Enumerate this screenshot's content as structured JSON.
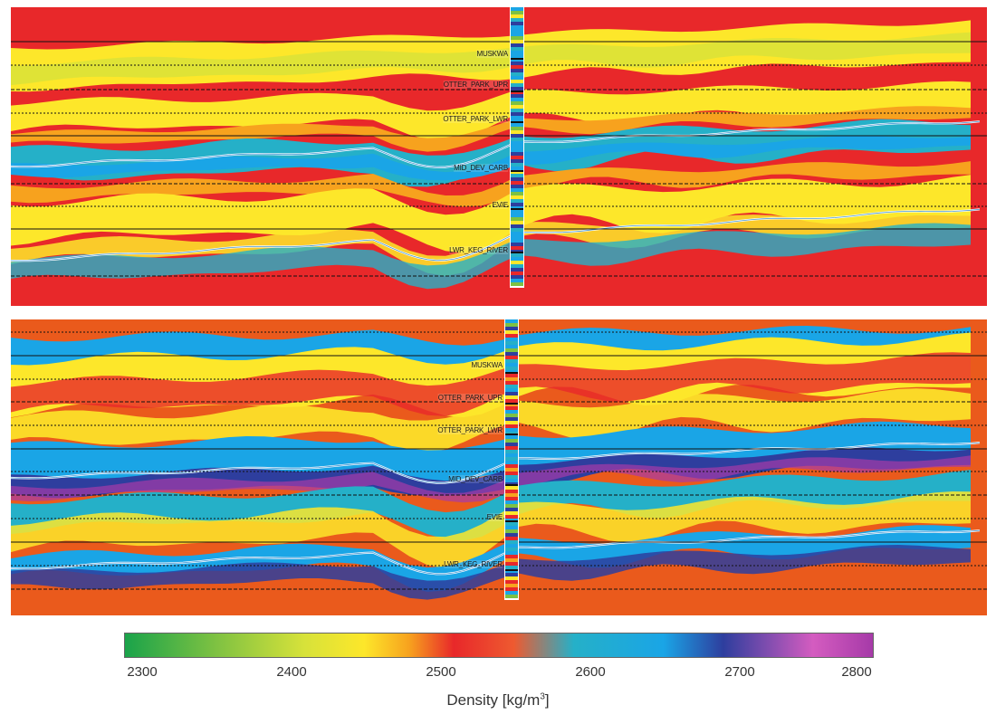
{
  "sections": [
    {
      "id": "top",
      "horizons": [
        "MUSKWA",
        "OTTER_PARK_UPR",
        "OTTER_PARK_LWR",
        "MID_DEV_CARB",
        "EVIE",
        "LWR_KEG_RIVER"
      ],
      "background_color": "#e8282a"
    },
    {
      "id": "bottom",
      "horizons": [
        "MUSKWA",
        "OTTER_PARK_UPR",
        "OTTER_PARK_LWR",
        "MID_DEV_CARB",
        "EVIE",
        "LWR_KEG_RIVER"
      ],
      "background_color": "#ea5a1c"
    }
  ],
  "colorbar": {
    "min": 2300,
    "max": 2800,
    "ticks": [
      "2300",
      "2400",
      "2500",
      "2600",
      "2700",
      "2800"
    ],
    "title": "Density [kg/m",
    "title_sup": "3",
    "title_suffix": "]",
    "stops": [
      {
        "value": 2300,
        "color": "#1aa34a"
      },
      {
        "value": 2360,
        "color": "#7dc142"
      },
      {
        "value": 2420,
        "color": "#d7e23a"
      },
      {
        "value": 2460,
        "color": "#fde72a"
      },
      {
        "value": 2490,
        "color": "#f7a21e"
      },
      {
        "value": 2520,
        "color": "#e8282a"
      },
      {
        "value": 2560,
        "color": "#ee5a30"
      },
      {
        "value": 2600,
        "color": "#25b0c8"
      },
      {
        "value": 2660,
        "color": "#1aa5e6"
      },
      {
        "value": 2700,
        "color": "#2e3e9e"
      },
      {
        "value": 2760,
        "color": "#d45cc0"
      },
      {
        "value": 2800,
        "color": "#a63aa8"
      }
    ]
  }
}
